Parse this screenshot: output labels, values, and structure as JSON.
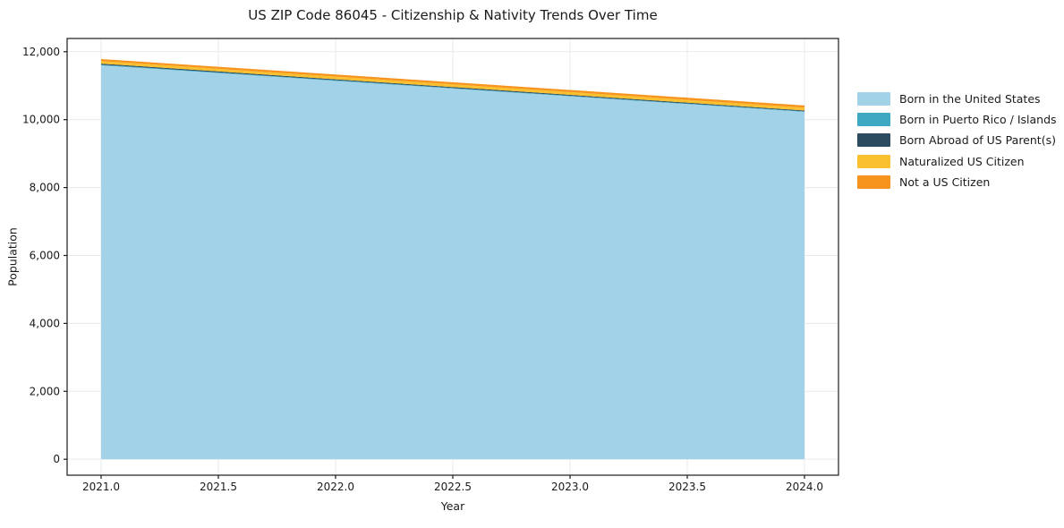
{
  "figure": {
    "title": "US ZIP Code 86045 - Citizenship & Nativity Trends Over Time"
  },
  "chart_data": {
    "type": "area",
    "stacked": true,
    "title": "US ZIP Code 86045 - Citizenship & Nativity Trends Over Time",
    "xlabel": "Year",
    "ylabel": "Population",
    "x": [
      2021,
      2022,
      2023,
      2024
    ],
    "series": [
      {
        "name": "Born in the United States",
        "color": "#A2D2E7",
        "values": [
          11600,
          11143,
          10687,
          10230
        ]
      },
      {
        "name": "Born in Puerto Rico / Islands",
        "color": "#3EA8C3",
        "values": [
          20,
          18,
          17,
          15
        ]
      },
      {
        "name": "Born Abroad of US Parent(s)",
        "color": "#2B4C5E",
        "values": [
          30,
          28,
          27,
          25
        ]
      },
      {
        "name": "Naturalized US Citizen",
        "color": "#FBC02E",
        "values": [
          75,
          78,
          80,
          82
        ]
      },
      {
        "name": "Not a US Citizen",
        "color": "#F7941E",
        "values": [
          60,
          62,
          63,
          65
        ]
      }
    ],
    "totals": [
      11785,
      11329,
      10874,
      10417
    ],
    "xlim": [
      2020.855,
      2024.145
    ],
    "ylim": [
      -470,
      12390
    ],
    "xticks": {
      "values": [
        2021,
        2021.5,
        2022,
        2022.5,
        2023,
        2023.5,
        2024
      ],
      "labels": [
        "2021.0",
        "2021.5",
        "2022.0",
        "2022.5",
        "2023.0",
        "2023.5",
        "2024.0"
      ]
    },
    "yticks": {
      "values": [
        0,
        2000,
        4000,
        6000,
        8000,
        10000,
        12000
      ],
      "labels": [
        "0",
        "2,000",
        "4,000",
        "6,000",
        "8,000",
        "10,000",
        "12,000"
      ]
    },
    "grid": true,
    "grid_color": "#e9e9e9",
    "spine_color": "#1a1a1a",
    "legend_position": "right-outside"
  }
}
